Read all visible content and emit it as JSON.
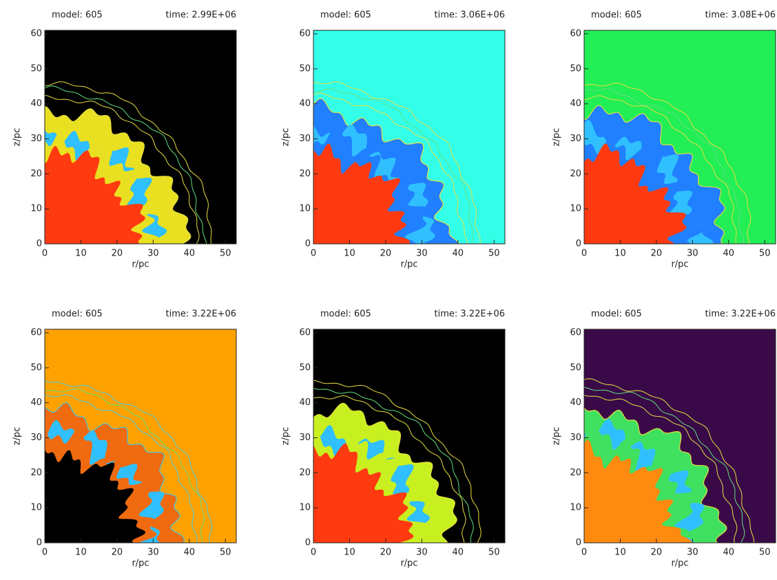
{
  "chart_data": [
    {
      "type": "image",
      "title_left": "model: 605",
      "title_right": "time: 2.99E+06",
      "xlabel": "r/pc",
      "ylabel": "z/pc",
      "xlim": [
        0,
        53
      ],
      "ylim": [
        0,
        61
      ],
      "xticks": [
        0,
        10,
        20,
        30,
        40,
        50
      ],
      "yticks": [
        0,
        10,
        20,
        30,
        40,
        50,
        60
      ],
      "background": "#000000",
      "core_color": "#ff3a10",
      "shell_color": "#e8e020",
      "contour_color": "#e8e040"
    },
    {
      "type": "image",
      "title_left": "model: 605",
      "title_right": "time: 3.06E+06",
      "xlabel": "r/pc",
      "ylabel": "z/pc",
      "xlim": [
        0,
        53
      ],
      "ylim": [
        0,
        61
      ],
      "xticks": [
        0,
        10,
        20,
        30,
        40,
        50
      ],
      "yticks": [
        0,
        10,
        20,
        30,
        40,
        50,
        60
      ],
      "background": "#33ffe8",
      "core_color": "#ff3a10",
      "shell_color": "#2080ff",
      "contour_color": "#e8e040"
    },
    {
      "type": "image",
      "title_left": "model: 605",
      "title_right": "time: 3.08E+06",
      "xlabel": "r/pc",
      "ylabel": "z/pc",
      "xlim": [
        0,
        53
      ],
      "ylim": [
        0,
        61
      ],
      "xticks": [
        0,
        10,
        20,
        30,
        40,
        50
      ],
      "yticks": [
        0,
        10,
        20,
        30,
        40,
        50,
        60
      ],
      "background": "#22ee55",
      "core_color": "#ff3a10",
      "shell_color": "#2080ff",
      "contour_color": "#e8e040"
    },
    {
      "type": "image",
      "title_left": "model: 605",
      "title_right": "time: 3.22E+06",
      "xlabel": "r/pc",
      "ylabel": "z/pc",
      "xlim": [
        0,
        53
      ],
      "ylim": [
        0,
        61
      ],
      "xticks": [
        0,
        10,
        20,
        30,
        40,
        50
      ],
      "yticks": [
        0,
        10,
        20,
        30,
        40,
        50,
        60
      ],
      "background": "#ffa200",
      "core_color": "#000000",
      "shell_color": "#f06a10",
      "contour_color": "#40c8e0"
    },
    {
      "type": "image",
      "title_left": "model: 605",
      "title_right": "time: 3.22E+06",
      "xlabel": "r/pc",
      "ylabel": "z/pc",
      "xlim": [
        0,
        53
      ],
      "ylim": [
        0,
        61
      ],
      "xticks": [
        0,
        10,
        20,
        30,
        40,
        50
      ],
      "yticks": [
        0,
        10,
        20,
        30,
        40,
        50,
        60
      ],
      "background": "#000000",
      "core_color": "#ff3a10",
      "shell_color": "#c8f020",
      "contour_color": "#e8e040"
    },
    {
      "type": "image",
      "title_left": "model: 605",
      "title_right": "time: 3.22E+06",
      "xlabel": "r/pc",
      "ylabel": "z/pc",
      "xlim": [
        0,
        53
      ],
      "ylim": [
        0,
        61
      ],
      "xticks": [
        0,
        10,
        20,
        30,
        40,
        50
      ],
      "yticks": [
        0,
        10,
        20,
        30,
        40,
        50,
        60
      ],
      "background": "#3a0a48",
      "core_color": "#ff8a10",
      "shell_color": "#40e060",
      "contour_color": "#e8e040"
    }
  ]
}
